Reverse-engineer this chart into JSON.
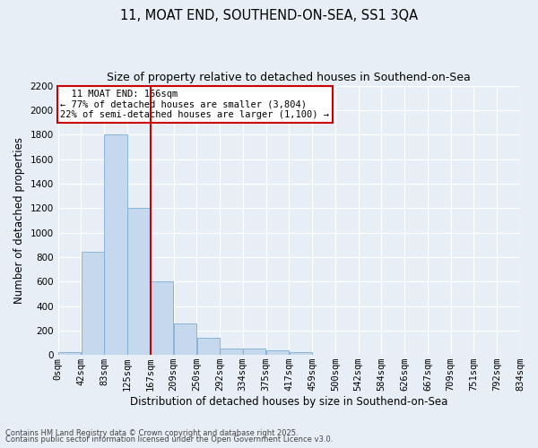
{
  "title": "11, MOAT END, SOUTHEND-ON-SEA, SS1 3QA",
  "subtitle": "Size of property relative to detached houses in Southend-on-Sea",
  "xlabel": "Distribution of detached houses by size in Southend-on-Sea",
  "ylabel": "Number of detached properties",
  "bin_labels": [
    "0sqm",
    "42sqm",
    "83sqm",
    "125sqm",
    "167sqm",
    "209sqm",
    "250sqm",
    "292sqm",
    "334sqm",
    "375sqm",
    "417sqm",
    "459sqm",
    "500sqm",
    "542sqm",
    "584sqm",
    "626sqm",
    "667sqm",
    "709sqm",
    "751sqm",
    "792sqm",
    "834sqm"
  ],
  "num_bins": 21,
  "bar_heights": [
    25,
    840,
    1800,
    1200,
    600,
    260,
    140,
    50,
    50,
    35,
    20,
    0,
    0,
    0,
    0,
    0,
    0,
    0,
    0,
    0,
    0
  ],
  "bar_color": "#c5d8ee",
  "bar_edge_color": "#7aadd4",
  "property_bin_index": 4,
  "property_line_color": "#cc0000",
  "ylim": [
    0,
    2200
  ],
  "yticks": [
    0,
    200,
    400,
    600,
    800,
    1000,
    1200,
    1400,
    1600,
    1800,
    2000,
    2200
  ],
  "annotation_title": "11 MOAT END: 166sqm",
  "annotation_line1": "← 77% of detached houses are smaller (3,804)",
  "annotation_line2": "22% of semi-detached houses are larger (1,100) →",
  "annotation_box_color": "#cc0000",
  "background_color": "#e8eef5",
  "grid_color": "#d0dae8",
  "footnote1": "Contains HM Land Registry data © Crown copyright and database right 2025.",
  "footnote2": "Contains public sector information licensed under the Open Government Licence v3.0.",
  "title_fontsize": 10.5,
  "subtitle_fontsize": 9,
  "label_fontsize": 8.5,
  "tick_fontsize": 7.5,
  "annotation_fontsize": 7.5
}
